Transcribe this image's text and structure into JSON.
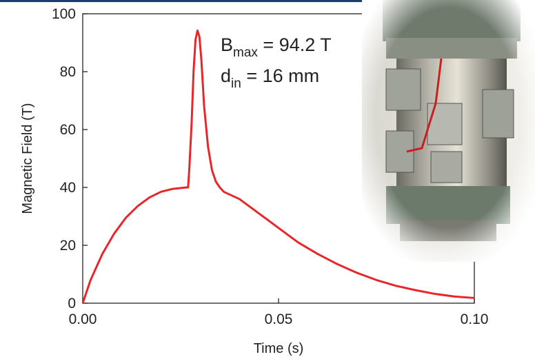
{
  "chart_data": {
    "type": "line",
    "x_label": "Time (s)",
    "y_label": "Magnetic Field (T)",
    "annotations": [
      {
        "main": "B",
        "sub": "max",
        "rest": " = 94.2 T"
      },
      {
        "main": "d",
        "sub": "in",
        "rest": " = 16 mm"
      }
    ],
    "color": "#e8262a",
    "x": [
      0,
      0.002,
      0.005,
      0.008,
      0.011,
      0.014,
      0.017,
      0.02,
      0.023,
      0.0265,
      0.0269,
      0.0272,
      0.0278,
      0.0283,
      0.0288,
      0.0293,
      0.0298,
      0.0303,
      0.031,
      0.032,
      0.033,
      0.034,
      0.035,
      0.036,
      0.04,
      0.045,
      0.05,
      0.055,
      0.06,
      0.065,
      0.07,
      0.075,
      0.08,
      0.085,
      0.09,
      0.095,
      0.1
    ],
    "values": [
      0,
      8,
      17,
      24,
      29.5,
      33.5,
      36.5,
      38.5,
      39.5,
      40,
      40,
      46,
      62,
      80,
      91,
      94.2,
      92,
      84,
      68,
      54,
      46,
      42,
      40,
      38.5,
      36,
      31,
      26,
      21,
      17,
      13.5,
      10.5,
      8,
      6,
      4.5,
      3.2,
      2.3,
      1.8
    ],
    "xlim": [
      0,
      0.1
    ],
    "ylim": [
      0,
      100
    ],
    "xticks": [
      {
        "value": 0,
        "label": "0.00"
      },
      {
        "value": 0.05,
        "label": "0.05"
      },
      {
        "value": 0.1,
        "label": "0.10"
      }
    ],
    "yticks": [
      0,
      20,
      40,
      60,
      80,
      100
    ]
  }
}
